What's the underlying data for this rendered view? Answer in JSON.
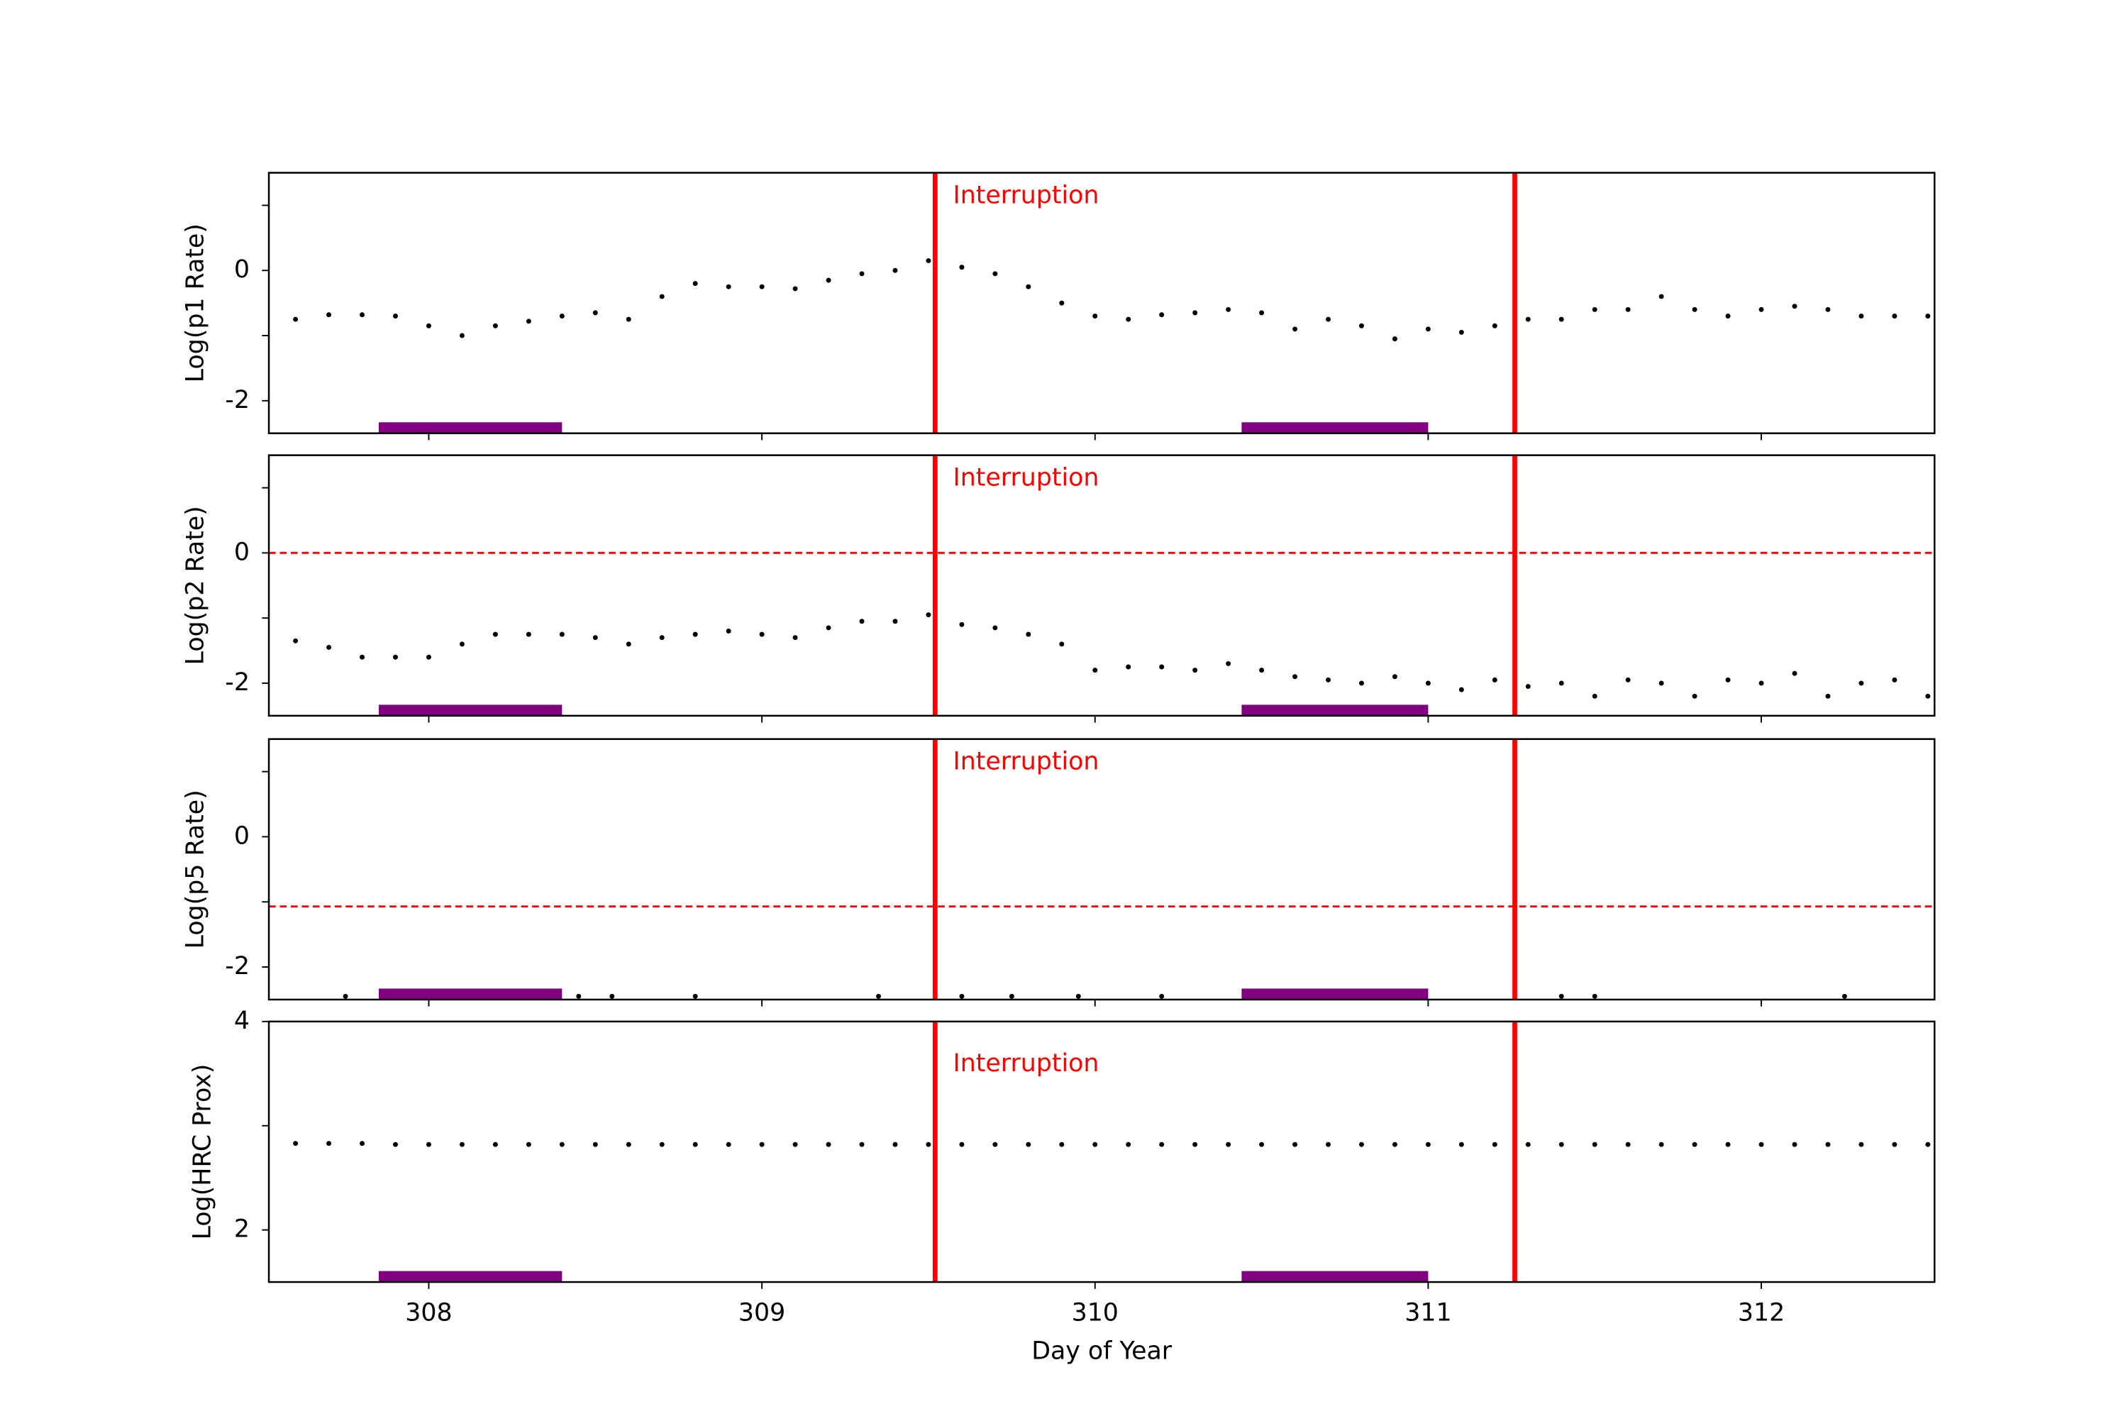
{
  "chart_data": [
    {
      "type": "scatter",
      "ylabel": "Log(p1 Rate)",
      "color": "#000000",
      "xlim": [
        307.52,
        312.52
      ],
      "xticks": [
        308,
        309,
        310,
        311,
        312
      ],
      "xtick_labels": false,
      "ylim": [
        -2.5,
        1.5
      ],
      "yticks": [
        -2,
        0
      ],
      "yminor": [
        -1,
        1
      ],
      "x": [
        307.6,
        307.7,
        307.8,
        307.9,
        308.0,
        308.1,
        308.2,
        308.3,
        308.4,
        308.5,
        308.6,
        308.7,
        308.8,
        308.9,
        309.0,
        309.1,
        309.2,
        309.3,
        309.4,
        309.5,
        309.6,
        309.7,
        309.8,
        309.9,
        310.0,
        310.1,
        310.2,
        310.3,
        310.4,
        310.5,
        310.6,
        310.7,
        310.8,
        310.9,
        311.0,
        311.1,
        311.2,
        311.3,
        311.4,
        311.5,
        311.6,
        311.7,
        311.8,
        311.9,
        312.0,
        312.1,
        312.2,
        312.3,
        312.4,
        312.5
      ],
      "values": [
        -0.75,
        -0.68,
        -0.68,
        -0.7,
        -0.85,
        -1.0,
        -0.85,
        -0.78,
        -0.7,
        -0.65,
        -0.75,
        -0.4,
        -0.2,
        -0.25,
        -0.25,
        -0.28,
        -0.15,
        -0.05,
        0.0,
        0.15,
        0.05,
        -0.05,
        -0.25,
        -0.5,
        -0.7,
        -0.75,
        -0.68,
        -0.65,
        -0.6,
        -0.65,
        -0.9,
        -0.75,
        -0.85,
        -1.05,
        -0.9,
        -0.95,
        -0.85,
        -0.75,
        -0.75,
        -0.6,
        -0.6,
        -0.4,
        -0.6,
        -0.7,
        -0.6,
        -0.55,
        -0.6,
        -0.7,
        -0.7,
        -0.7
      ],
      "vlines": [
        309.52,
        311.26
      ],
      "vline_color": "#ff0000",
      "annotation": "Interruption",
      "bands": [
        [
          307.85,
          308.4
        ],
        [
          310.44,
          311.0
        ]
      ],
      "band_color": "#800080"
    },
    {
      "type": "scatter",
      "ylabel": "Log(p2 Rate)",
      "color": "#000000",
      "xlim": [
        307.52,
        312.52
      ],
      "xticks": [
        308,
        309,
        310,
        311,
        312
      ],
      "xtick_labels": false,
      "ylim": [
        -2.5,
        1.5
      ],
      "yticks": [
        -2,
        0
      ],
      "yminor": [
        -1,
        1
      ],
      "x": [
        307.6,
        307.7,
        307.8,
        307.9,
        308.0,
        308.1,
        308.2,
        308.3,
        308.4,
        308.5,
        308.6,
        308.7,
        308.8,
        308.9,
        309.0,
        309.1,
        309.2,
        309.3,
        309.4,
        309.5,
        309.6,
        309.7,
        309.8,
        309.9,
        310.0,
        310.1,
        310.2,
        310.3,
        310.4,
        310.5,
        310.6,
        310.7,
        310.8,
        310.9,
        311.0,
        311.1,
        311.2,
        311.3,
        311.4,
        311.5,
        311.6,
        311.7,
        311.8,
        311.9,
        312.0,
        312.1,
        312.2,
        312.3,
        312.4,
        312.5
      ],
      "values": [
        -1.35,
        -1.45,
        -1.6,
        -1.6,
        -1.6,
        -1.4,
        -1.25,
        -1.25,
        -1.25,
        -1.3,
        -1.4,
        -1.3,
        -1.25,
        -1.2,
        -1.25,
        -1.3,
        -1.15,
        -1.05,
        -1.05,
        -0.95,
        -1.1,
        -1.15,
        -1.25,
        -1.4,
        -1.8,
        -1.75,
        -1.75,
        -1.8,
        -1.7,
        -1.8,
        -1.9,
        -1.95,
        -2.0,
        -1.9,
        -2.0,
        -2.1,
        -1.95,
        -2.05,
        -2.0,
        -2.2,
        -1.95,
        -2.0,
        -2.2,
        -1.95,
        -2.0,
        -1.85,
        -2.2,
        -2.0,
        -1.95,
        -2.2
      ],
      "hline": 0,
      "hline_color": "#ff0000",
      "vlines": [
        309.52,
        311.26
      ],
      "vline_color": "#ff0000",
      "annotation": "Interruption",
      "bands": [
        [
          307.85,
          308.4
        ],
        [
          310.44,
          311.0
        ]
      ],
      "band_color": "#800080"
    },
    {
      "type": "scatter",
      "ylabel": "Log(p5 Rate)",
      "color": "#000000",
      "xlim": [
        307.52,
        312.52
      ],
      "xticks": [
        308,
        309,
        310,
        311,
        312
      ],
      "xtick_labels": false,
      "ylim": [
        -2.5,
        1.5
      ],
      "yticks": [
        -2,
        0
      ],
      "yminor": [
        -1,
        1
      ],
      "x": [
        307.75,
        308.45,
        308.55,
        308.8,
        309.35,
        309.6,
        309.75,
        309.95,
        310.2,
        311.4,
        311.5,
        312.25
      ],
      "values": [
        -2.45,
        -2.45,
        -2.45,
        -2.45,
        -2.45,
        -2.45,
        -2.45,
        -2.45,
        -2.45,
        -2.45,
        -2.45,
        -2.45
      ],
      "hline": -1.07,
      "hline_color": "#ff0000",
      "vlines": [
        309.52,
        311.26
      ],
      "vline_color": "#ff0000",
      "annotation": "Interruption",
      "bands": [
        [
          307.85,
          308.4
        ],
        [
          310.44,
          311.0
        ]
      ],
      "band_color": "#800080"
    },
    {
      "type": "scatter",
      "ylabel": "Log(HRC Prox)",
      "xlabel": "Day of Year",
      "color": "#000000",
      "xlim": [
        307.52,
        312.52
      ],
      "xticks": [
        308,
        309,
        310,
        311,
        312
      ],
      "xtick_labels": true,
      "ylim": [
        1.5,
        4
      ],
      "yticks": [
        2,
        4
      ],
      "yminor": [
        3
      ],
      "x": [
        307.6,
        307.7,
        307.8,
        307.9,
        308.0,
        308.1,
        308.2,
        308.3,
        308.4,
        308.5,
        308.6,
        308.7,
        308.8,
        308.9,
        309.0,
        309.1,
        309.2,
        309.3,
        309.4,
        309.5,
        309.6,
        309.7,
        309.8,
        309.9,
        310.0,
        310.1,
        310.2,
        310.3,
        310.4,
        310.5,
        310.6,
        310.7,
        310.8,
        310.9,
        311.0,
        311.1,
        311.2,
        311.3,
        311.4,
        311.5,
        311.6,
        311.7,
        311.8,
        311.9,
        312.0,
        312.1,
        312.2,
        312.3,
        312.4,
        312.5
      ],
      "values": [
        2.83,
        2.83,
        2.83,
        2.82,
        2.82,
        2.82,
        2.82,
        2.82,
        2.82,
        2.82,
        2.82,
        2.82,
        2.82,
        2.82,
        2.82,
        2.82,
        2.82,
        2.82,
        2.82,
        2.82,
        2.82,
        2.82,
        2.82,
        2.82,
        2.82,
        2.82,
        2.82,
        2.82,
        2.82,
        2.82,
        2.82,
        2.82,
        2.82,
        2.82,
        2.82,
        2.82,
        2.82,
        2.82,
        2.82,
        2.82,
        2.82,
        2.82,
        2.82,
        2.82,
        2.82,
        2.82,
        2.82,
        2.82,
        2.82,
        2.82
      ],
      "vlines": [
        309.52,
        311.26
      ],
      "vline_color": "#ff0000",
      "annotation": "Interruption",
      "bands": [
        [
          307.85,
          308.4
        ],
        [
          310.44,
          311.0
        ]
      ],
      "band_color": "#800080"
    }
  ]
}
